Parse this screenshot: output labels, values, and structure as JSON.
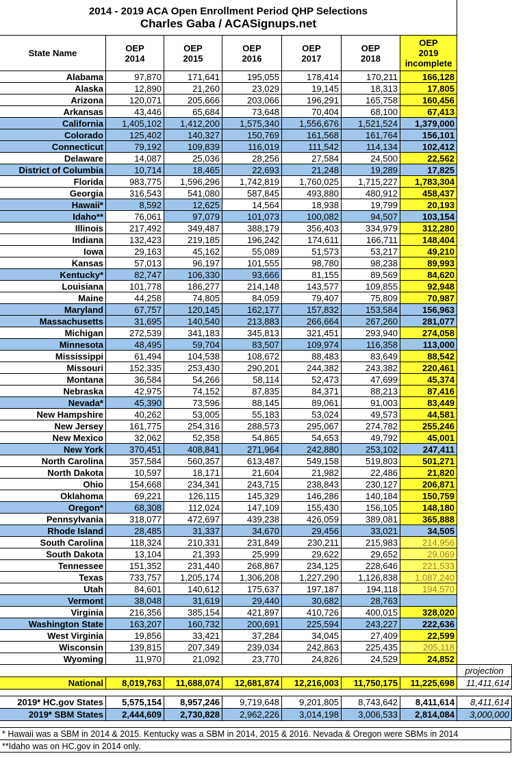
{
  "title": {
    "line1": "2014 - 2019 ACA Open Enrollment Period QHP Selections",
    "line2": "Charles Gaba / ACASignups.net"
  },
  "header": {
    "state": "State Name",
    "columns": [
      [
        "OEP",
        "2014"
      ],
      [
        "OEP",
        "2015"
      ],
      [
        "OEP",
        "2016"
      ],
      [
        "OEP",
        "2017"
      ],
      [
        "OEP",
        "2018"
      ],
      [
        "OEP",
        "2019",
        "incomplete"
      ]
    ]
  },
  "rows": [
    {
      "name": "Alabama",
      "values": [
        "97,870",
        "171,641",
        "195,055",
        "178,414",
        "170,211",
        "166,128"
      ]
    },
    {
      "name": "Alaska",
      "values": [
        "12,890",
        "21,260",
        "23,029",
        "19,145",
        "18,313",
        "17,805"
      ]
    },
    {
      "name": "Arizona",
      "values": [
        "120,071",
        "205,666",
        "203,066",
        "196,291",
        "165,758",
        "160,456"
      ]
    },
    {
      "name": "Arkansas",
      "values": [
        "43,446",
        "65,684",
        "73,648",
        "70,404",
        "68,100",
        "67,413"
      ]
    },
    {
      "name": "California",
      "values": [
        "1,405,102",
        "1,412,200",
        "1,575,340",
        "1,556,676",
        "1,521,524",
        "1,379,000"
      ]
    },
    {
      "name": "Colorado",
      "values": [
        "125,402",
        "140,327",
        "150,769",
        "161,568",
        "161,764",
        "156,101"
      ]
    },
    {
      "name": "Connecticut",
      "values": [
        "79,192",
        "109,839",
        "116,019",
        "111,542",
        "114,134",
        "102,412"
      ]
    },
    {
      "name": "Delaware",
      "values": [
        "14,087",
        "25,036",
        "28,256",
        "27,584",
        "24,500",
        "22,562"
      ]
    },
    {
      "name": "District of Columbia",
      "values": [
        "10,714",
        "18,465",
        "22,693",
        "21,248",
        "19,289",
        "17,825"
      ]
    },
    {
      "name": "Florida",
      "values": [
        "983,775",
        "1,596,296",
        "1,742,819",
        "1,760,025",
        "1,715,227",
        "1,783,304"
      ]
    },
    {
      "name": "Georgia",
      "values": [
        "316,543",
        "541,080",
        "587,845",
        "493,880",
        "480,912",
        "458,437"
      ]
    },
    {
      "name": "Hawaii*",
      "values": [
        "8,592",
        "12,625",
        "14,564",
        "18,938",
        "19,799",
        "20,193"
      ]
    },
    {
      "name": "Idaho**",
      "values": [
        "76,061",
        "97,079",
        "101,073",
        "100,082",
        "94,507",
        "103,154"
      ]
    },
    {
      "name": "Illinois",
      "values": [
        "217,492",
        "349,487",
        "388,179",
        "356,403",
        "334,979",
        "312,280"
      ]
    },
    {
      "name": "Indiana",
      "values": [
        "132,423",
        "219,185",
        "196,242",
        "174,611",
        "166,711",
        "148,404"
      ]
    },
    {
      "name": "Iowa",
      "values": [
        "29,163",
        "45,162",
        "55,089",
        "51,573",
        "53,217",
        "49,210"
      ]
    },
    {
      "name": "Kansas",
      "values": [
        "57,013",
        "96,197",
        "101,555",
        "98,780",
        "98,238",
        "89,993"
      ]
    },
    {
      "name": "Kentucky*",
      "values": [
        "82,747",
        "106,330",
        "93,666",
        "81,155",
        "89,569",
        "84,620"
      ]
    },
    {
      "name": "Louisiana",
      "values": [
        "101,778",
        "186,277",
        "214,148",
        "143,577",
        "109,855",
        "92,948"
      ]
    },
    {
      "name": "Maine",
      "values": [
        "44,258",
        "74,805",
        "84,059",
        "79,407",
        "75,809",
        "70,987"
      ]
    },
    {
      "name": "Maryland",
      "values": [
        "67,757",
        "120,145",
        "162,177",
        "157,832",
        "153,584",
        "156,963"
      ]
    },
    {
      "name": "Massachusetts",
      "values": [
        "31,695",
        "140,540",
        "213,883",
        "266,664",
        "267,260",
        "281,077"
      ]
    },
    {
      "name": "Michigan",
      "values": [
        "272,539",
        "341,183",
        "345,813",
        "321,451",
        "293,940",
        "274,058"
      ]
    },
    {
      "name": "Minnesota",
      "values": [
        "48,495",
        "59,704",
        "83,507",
        "109,974",
        "116,358",
        "113,000"
      ]
    },
    {
      "name": "Mississippi",
      "values": [
        "61,494",
        "104,538",
        "108,672",
        "88,483",
        "83,649",
        "88,542"
      ]
    },
    {
      "name": "Missouri",
      "values": [
        "152,335",
        "253,430",
        "290,201",
        "244,382",
        "243,382",
        "220,461"
      ]
    },
    {
      "name": "Montana",
      "values": [
        "36,584",
        "54,266",
        "58,114",
        "52,473",
        "47,699",
        "45,374"
      ]
    },
    {
      "name": "Nebraska",
      "values": [
        "42,975",
        "74,152",
        "87,835",
        "84,371",
        "88,213",
        "87,416"
      ]
    },
    {
      "name": "Nevada*",
      "values": [
        "45,390",
        "73,596",
        "88,145",
        "89,061",
        "91,003",
        "83,449"
      ]
    },
    {
      "name": "New Hampshire",
      "values": [
        "40,262",
        "53,005",
        "55,183",
        "53,024",
        "49,573",
        "44,581"
      ]
    },
    {
      "name": "New Jersey",
      "values": [
        "161,775",
        "254,316",
        "288,573",
        "295,067",
        "274,782",
        "255,246"
      ]
    },
    {
      "name": "New Mexico",
      "values": [
        "32,062",
        "52,358",
        "54,865",
        "54,653",
        "49,792",
        "45,001"
      ]
    },
    {
      "name": "New York",
      "values": [
        "370,451",
        "408,841",
        "271,964",
        "242,880",
        "253,102",
        "247,411"
      ]
    },
    {
      "name": "North Carolina",
      "values": [
        "357,584",
        "560,357",
        "613,487",
        "549,158",
        "519,803",
        "501,271"
      ]
    },
    {
      "name": "North Dakota",
      "values": [
        "10,597",
        "18,171",
        "21,604",
        "21,982",
        "22,486",
        "21,820"
      ]
    },
    {
      "name": "Ohio",
      "values": [
        "154,668",
        "234,341",
        "243,715",
        "238,843",
        "230,127",
        "206,871"
      ]
    },
    {
      "name": "Oklahoma",
      "values": [
        "69,221",
        "126,115",
        "145,329",
        "146,286",
        "140,184",
        "150,759"
      ]
    },
    {
      "name": "Oregon*",
      "values": [
        "68,308",
        "112,024",
        "147,109",
        "155,430",
        "156,105",
        "148,180"
      ]
    },
    {
      "name": "Pennsylvania",
      "values": [
        "318,077",
        "472,697",
        "439,238",
        "426,059",
        "389,081",
        "365,888"
      ]
    },
    {
      "name": "Rhode Island",
      "values": [
        "28,485",
        "31,337",
        "34,670",
        "29,456",
        "33,021",
        "34,505"
      ]
    },
    {
      "name": "South Carolina",
      "values": [
        "118,324",
        "210,331",
        "231,849",
        "230,211",
        "215,983",
        "214,956"
      ]
    },
    {
      "name": "South Dakota",
      "values": [
        "13,104",
        "21,393",
        "25,999",
        "29,622",
        "29,652",
        "29,069"
      ]
    },
    {
      "name": "Tennessee",
      "values": [
        "151,352",
        "231,440",
        "268,867",
        "234,125",
        "228,646",
        "221,533"
      ]
    },
    {
      "name": "Texas",
      "values": [
        "733,757",
        "1,205,174",
        "1,306,208",
        "1,227,290",
        "1,126,838",
        "1,087,240"
      ]
    },
    {
      "name": "Utah",
      "values": [
        "84,601",
        "140,612",
        "175,637",
        "197,187",
        "194,118",
        "194,570"
      ]
    },
    {
      "name": "Vermont",
      "values": [
        "38,048",
        "31,619",
        "29,440",
        "30,682",
        "28,763",
        null
      ]
    },
    {
      "name": "Virginia",
      "values": [
        "216,356",
        "385,154",
        "421,897",
        "410,726",
        "400,015",
        "328,020"
      ]
    },
    {
      "name": "Washington State",
      "values": [
        "163,207",
        "160,732",
        "200,691",
        "225,594",
        "243,227",
        "222,636"
      ]
    },
    {
      "name": "West Virginia",
      "values": [
        "19,856",
        "33,421",
        "37,284",
        "34,045",
        "27,409",
        "22,599"
      ]
    },
    {
      "name": "Wisconsin",
      "values": [
        "139,815",
        "207,349",
        "239,034",
        "242,863",
        "225,435",
        "205,118"
      ]
    },
    {
      "name": "Wyoming",
      "values": [
        "11,970",
        "21,092",
        "23,770",
        "24,826",
        "24,529",
        "24,852"
      ]
    }
  ],
  "projection_label": "projection",
  "totals": [
    {
      "name": "National",
      "values": [
        "8,019,763",
        "11,688,074",
        "12,681,874",
        "12,216,003",
        "11,750,175",
        "11,225,698"
      ],
      "projection": "11,411,614"
    },
    {
      "name": "2019* HC.gov States",
      "values": [
        "5,575,154",
        "8,957,246",
        "9,719,648",
        "9,201,805",
        "8,743,642",
        "8,411,614"
      ],
      "projection": "8,411,614"
    },
    {
      "name": "2019* SBM States",
      "values": [
        "2,444,609",
        "2,730,828",
        "2,962,226",
        "3,014,198",
        "3,006,533",
        "2,814,084"
      ],
      "projection": "3,000,000"
    }
  ],
  "footnotes": [
    "* Hawaii was a SBM in 2014 & 2015. Kentucky was a SBM in 2014, 2015 & 2016. Nevada & Oregon were SBMs in 2014",
    "**Idaho was on HC.gov in 2014 only."
  ]
}
